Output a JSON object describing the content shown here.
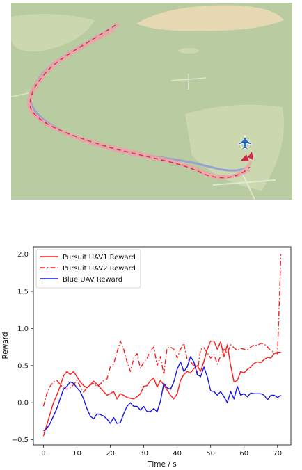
{
  "scene": {
    "terrain_color": "#b9cba0",
    "field_color": "#cfd9b3",
    "hill_color": "#e5d8b3",
    "blue_track_color": "#8e9bd6",
    "pursuit_track_color": "#eba5a8",
    "pursuit_marker_color": "#d6244a",
    "plane_color": "#1f6fc4",
    "plane_icon": "jet-plane-icon"
  },
  "chart_data": {
    "type": "line",
    "title": "",
    "xlabel": "Time / s",
    "ylabel": "Reward",
    "xlim": [
      -3,
      74
    ],
    "ylim": [
      -0.57,
      2.1
    ],
    "xticks": [
      0,
      10,
      20,
      30,
      40,
      50,
      60,
      70
    ],
    "yticks": [
      -0.5,
      0.0,
      0.5,
      1.0,
      1.5,
      2.0
    ],
    "ytick_labels": [
      "−0.5",
      "0.0",
      "0.5",
      "1.0",
      "1.5",
      "2.0"
    ],
    "legend_position": "upper-left",
    "series": [
      {
        "name": "Pursuit UAV1 Reward",
        "color": "#ff1a1a",
        "style": "solid",
        "x": [
          0,
          1,
          2,
          3,
          4,
          5,
          6,
          7,
          8,
          9,
          10,
          11,
          12,
          13,
          14,
          15,
          16,
          17,
          18,
          19,
          20,
          21,
          22,
          23,
          24,
          25,
          26,
          27,
          28,
          29,
          30,
          31,
          32,
          33,
          34,
          35,
          36,
          37,
          38,
          39,
          40,
          41,
          42,
          43,
          44,
          45,
          46,
          47,
          48,
          49,
          50,
          51,
          52,
          53,
          54,
          55,
          56,
          57,
          58,
          59,
          60,
          61,
          62,
          63,
          64,
          65,
          66,
          67,
          68,
          69,
          70,
          71
        ],
        "y": [
          -0.45,
          -0.3,
          -0.15,
          0.0,
          0.1,
          0.22,
          0.36,
          0.42,
          0.38,
          0.42,
          0.35,
          0.28,
          0.23,
          0.2,
          0.24,
          0.29,
          0.25,
          0.2,
          0.15,
          0.1,
          0.12,
          0.15,
          0.05,
          0.12,
          0.1,
          0.07,
          0.06,
          0.05,
          0.08,
          0.12,
          0.22,
          0.23,
          0.3,
          0.33,
          0.21,
          0.3,
          0.24,
          0.17,
          0.1,
          0.05,
          0.12,
          0.3,
          0.38,
          0.42,
          0.4,
          0.46,
          0.5,
          0.42,
          0.56,
          0.72,
          0.83,
          0.83,
          0.72,
          0.82,
          0.62,
          0.78,
          0.5,
          0.28,
          0.3,
          0.42,
          0.4,
          0.45,
          0.48,
          0.53,
          0.55,
          0.54,
          0.58,
          0.61,
          0.6,
          0.66,
          0.68,
          0.68
        ]
      },
      {
        "name": "Pursuit UAV2 Reward",
        "color": "#ff1a1a",
        "style": "dashdot",
        "x": [
          0,
          1,
          2,
          3,
          4,
          5,
          6,
          7,
          8,
          9,
          10,
          11,
          12,
          13,
          14,
          15,
          16,
          17,
          18,
          19,
          20,
          21,
          22,
          23,
          24,
          25,
          26,
          27,
          28,
          29,
          30,
          31,
          32,
          33,
          34,
          35,
          36,
          37,
          38,
          39,
          40,
          41,
          42,
          43,
          44,
          45,
          46,
          47,
          48,
          49,
          50,
          51,
          52,
          53,
          54,
          55,
          56,
          57,
          58,
          59,
          60,
          61,
          62,
          63,
          64,
          65,
          66,
          67,
          68,
          69,
          70,
          70.5,
          71
        ],
        "y": [
          -0.05,
          0.12,
          0.22,
          0.28,
          0.3,
          0.25,
          0.2,
          0.18,
          0.2,
          0.24,
          0.3,
          0.22,
          0.14,
          0.2,
          0.24,
          0.26,
          0.22,
          0.25,
          0.3,
          0.32,
          0.48,
          0.52,
          0.68,
          0.83,
          0.72,
          0.55,
          0.42,
          0.6,
          0.66,
          0.46,
          0.55,
          0.6,
          0.7,
          0.75,
          0.5,
          0.62,
          0.38,
          0.74,
          0.75,
          0.72,
          0.6,
          0.72,
          0.8,
          0.58,
          0.55,
          0.5,
          0.4,
          0.72,
          0.74,
          0.67,
          0.6,
          0.65,
          0.52,
          0.63,
          0.72,
          0.67,
          0.78,
          0.74,
          0.7,
          0.73,
          0.72,
          0.71,
          0.75,
          0.78,
          0.77,
          0.8,
          0.79,
          0.75,
          0.7,
          0.68,
          0.66,
          1.3,
          2.0
        ]
      },
      {
        "name": "Blue UAV Reward",
        "color": "#1414e6",
        "style": "solid",
        "x": [
          0,
          1,
          2,
          3,
          4,
          5,
          6,
          7,
          8,
          9,
          10,
          11,
          12,
          13,
          14,
          15,
          16,
          17,
          18,
          19,
          20,
          21,
          22,
          23,
          24,
          25,
          26,
          27,
          28,
          29,
          30,
          31,
          32,
          33,
          34,
          35,
          36,
          37,
          38,
          39,
          40,
          41,
          42,
          43,
          44,
          45,
          46,
          47,
          48,
          49,
          50,
          51,
          52,
          53,
          54,
          55,
          56,
          57,
          58,
          59,
          60,
          61,
          62,
          63,
          64,
          65,
          66,
          67,
          68,
          69,
          70,
          71
        ],
        "y": [
          -0.38,
          -0.35,
          -0.28,
          -0.18,
          -0.08,
          0.05,
          0.18,
          0.22,
          0.28,
          0.26,
          0.2,
          0.15,
          0.05,
          -0.08,
          -0.18,
          -0.22,
          -0.15,
          -0.16,
          -0.18,
          -0.22,
          -0.28,
          -0.2,
          -0.28,
          -0.27,
          -0.15,
          -0.05,
          0.0,
          -0.05,
          -0.05,
          -0.1,
          -0.05,
          -0.12,
          -0.12,
          -0.08,
          -0.12,
          0.02,
          0.26,
          0.2,
          0.18,
          0.28,
          0.45,
          0.55,
          0.42,
          0.48,
          0.62,
          0.55,
          0.38,
          0.35,
          0.48,
          0.35,
          0.16,
          0.15,
          0.1,
          0.15,
          0.08,
          0.0,
          0.15,
          0.05,
          0.22,
          0.1,
          0.12,
          0.08,
          0.13,
          0.12,
          0.12,
          0.12,
          0.1,
          0.04,
          0.1,
          0.1,
          0.07,
          0.1
        ]
      }
    ]
  }
}
